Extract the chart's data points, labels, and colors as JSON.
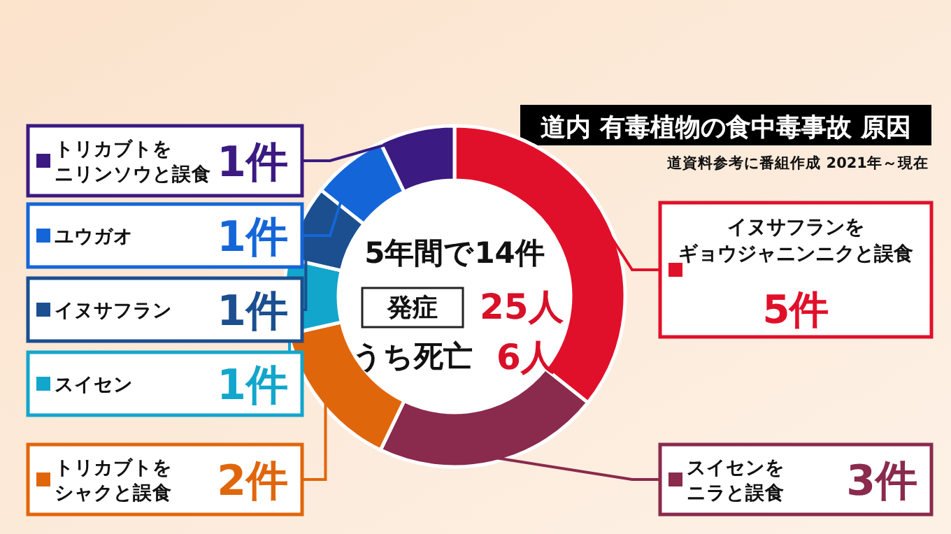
{
  "chart_data": {
    "type": "donut",
    "title": "道内 有毒植物の食中毒事故 原因",
    "subtitle": "道資料参考に番組作成 2021年～現在",
    "categories": [
      "イヌサフランをギョウジャニンニクと誤食",
      "スイセンをニラと誤食",
      "トリカブトをシャクと誤食",
      "スイセン",
      "イヌサフラン",
      "ユウガオ",
      "トリカブトをニリンソウと誤食"
    ],
    "values": [
      5,
      3,
      2,
      1,
      1,
      1,
      1
    ],
    "colors": [
      "#e1102a",
      "#8a2a4c",
      "#e0660c",
      "#12a6cc",
      "#1b4f8f",
      "#1466d8",
      "#3b1a82"
    ],
    "value_labels": [
      "5件",
      "3件",
      "2件",
      "1件",
      "1件",
      "1件",
      "1件"
    ],
    "legend": "left",
    "annotations": [
      "5年間で14件",
      "発症",
      "25人",
      "うち死亡",
      "6人"
    ]
  }
}
